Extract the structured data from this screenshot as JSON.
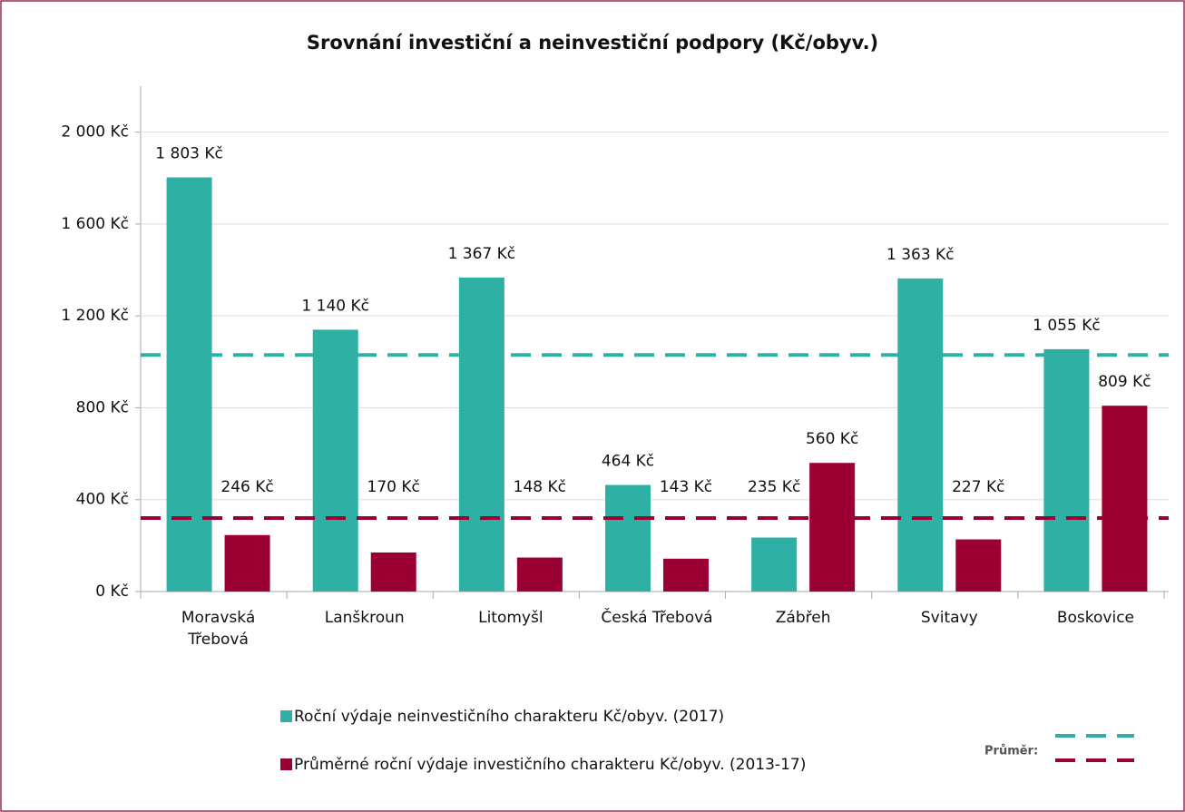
{
  "chart_data": {
    "type": "bar",
    "title": "Srovnání investiční a neinvestiční podpory (Kč/obyv.)",
    "categories": [
      "Moravská\nTřebová",
      "Lanškroun",
      "Litomyšl",
      "Česká Třebová",
      "Zábřeh",
      "Svitavy",
      "Boskovice"
    ],
    "series": [
      {
        "name": "Roční výdaje neinvestičního charakteru Kč/obyv. (2017)",
        "color": "#2eb0a5",
        "values": [
          1803,
          1140,
          1367,
          464,
          235,
          1363,
          1055
        ],
        "value_labels": [
          "1 803 Kč",
          "1 140 Kč",
          "1 367 Kč",
          "464 Kč",
          "235 Kč",
          "1 363 Kč",
          "1 055 Kč"
        ],
        "average": 1030
      },
      {
        "name": "Průměrné roční výdaje investičního charakteru Kč/obyv. (2013-17)",
        "color": "#9b0033",
        "values": [
          246,
          170,
          148,
          143,
          560,
          227,
          809
        ],
        "value_labels": [
          "246 Kč",
          "170 Kč",
          "148 Kč",
          "143 Kč",
          "560 Kč",
          "227 Kč",
          "809 Kč"
        ],
        "average": 320
      }
    ],
    "average_label": "Průměr:",
    "ylim": [
      0,
      2200
    ],
    "yticks": [
      {
        "value": 0,
        "label": "0 Kč"
      },
      {
        "value": 400,
        "label": "400 Kč"
      },
      {
        "value": 800,
        "label": "800 Kč"
      },
      {
        "value": 1200,
        "label": "1 200 Kč"
      },
      {
        "value": 1600,
        "label": "1 600 Kč"
      },
      {
        "value": 2000,
        "label": "2 000 Kč"
      }
    ],
    "grid": true
  }
}
